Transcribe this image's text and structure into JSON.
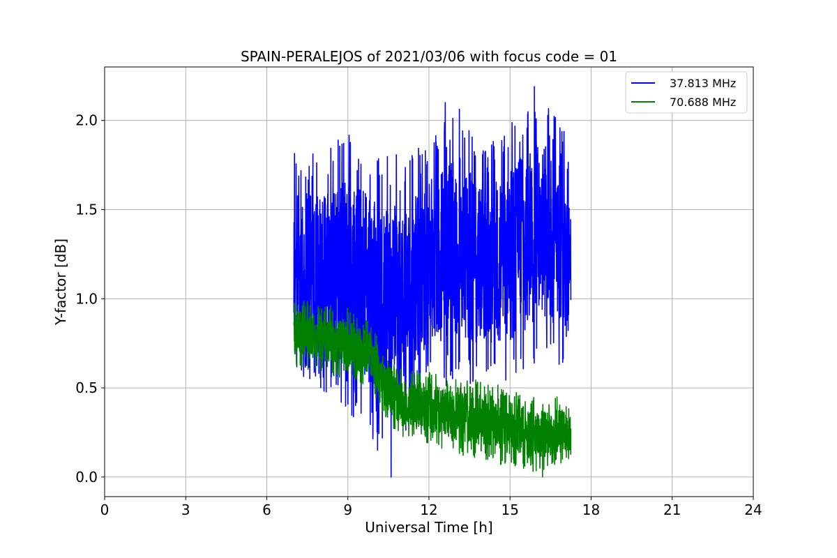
{
  "chart_data": {
    "type": "line",
    "title": "SPAIN-PERALEJOS of 2021/03/06 with focus code = 01",
    "xlabel": "Universal Time [h]",
    "ylabel": "Y-factor [dB]",
    "xlim": [
      0,
      24
    ],
    "ylim": [
      -0.11,
      2.3
    ],
    "x_ticks": [
      0,
      3,
      6,
      9,
      12,
      15,
      18,
      21,
      24
    ],
    "x_tick_labels": [
      "0",
      "3",
      "6",
      "9",
      "12",
      "15",
      "18",
      "21",
      "24"
    ],
    "y_ticks": [
      0.0,
      0.5,
      1.0,
      1.5,
      2.0
    ],
    "y_tick_labels": [
      "0.0",
      "0.5",
      "1.0",
      "1.5",
      "2.0"
    ],
    "grid": true,
    "legend_position": "top-right",
    "series": [
      {
        "name": "37.813 MHz",
        "color": "#0000ff",
        "x_range": [
          7.0,
          17.25
        ],
        "envelope_x": [
          7.0,
          8.0,
          9.0,
          10.0,
          11.0,
          12.0,
          13.0,
          14.0,
          15.0,
          16.0,
          17.0,
          17.25
        ],
        "envelope_high": [
          1.85,
          1.8,
          1.95,
          1.85,
          1.8,
          1.9,
          2.1,
          1.85,
          1.98,
          2.2,
          1.95,
          1.65
        ],
        "envelope_low": [
          0.6,
          0.45,
          0.35,
          0.2,
          0.2,
          0.5,
          0.5,
          0.5,
          0.5,
          0.6,
          0.6,
          0.75
        ],
        "typical_range": [
          0.9,
          1.6
        ],
        "notable_points": [
          {
            "x": 10.6,
            "y": 0.0
          },
          {
            "x": 12.6,
            "y": 2.1
          },
          {
            "x": 15.9,
            "y": 2.19
          },
          {
            "x": 10.1,
            "y": 0.15
          }
        ]
      },
      {
        "name": "70.688 MHz",
        "color": "#008000",
        "x_range": [
          7.0,
          17.25
        ],
        "envelope_x": [
          7.0,
          8.0,
          9.0,
          9.8,
          10.5,
          11.0,
          12.0,
          13.0,
          14.0,
          15.0,
          16.0,
          17.0,
          17.25
        ],
        "envelope_high": [
          1.0,
          0.98,
          0.95,
          0.88,
          0.65,
          0.6,
          0.6,
          0.55,
          0.55,
          0.5,
          0.45,
          0.45,
          0.4
        ],
        "envelope_low": [
          0.62,
          0.58,
          0.55,
          0.5,
          0.3,
          0.22,
          0.18,
          0.12,
          0.1,
          0.05,
          0.02,
          0.08,
          0.1
        ],
        "typical_range": [
          0.15,
          0.9
        ],
        "notable_points": [
          {
            "x": 16.2,
            "y": 0.0
          }
        ]
      }
    ]
  }
}
